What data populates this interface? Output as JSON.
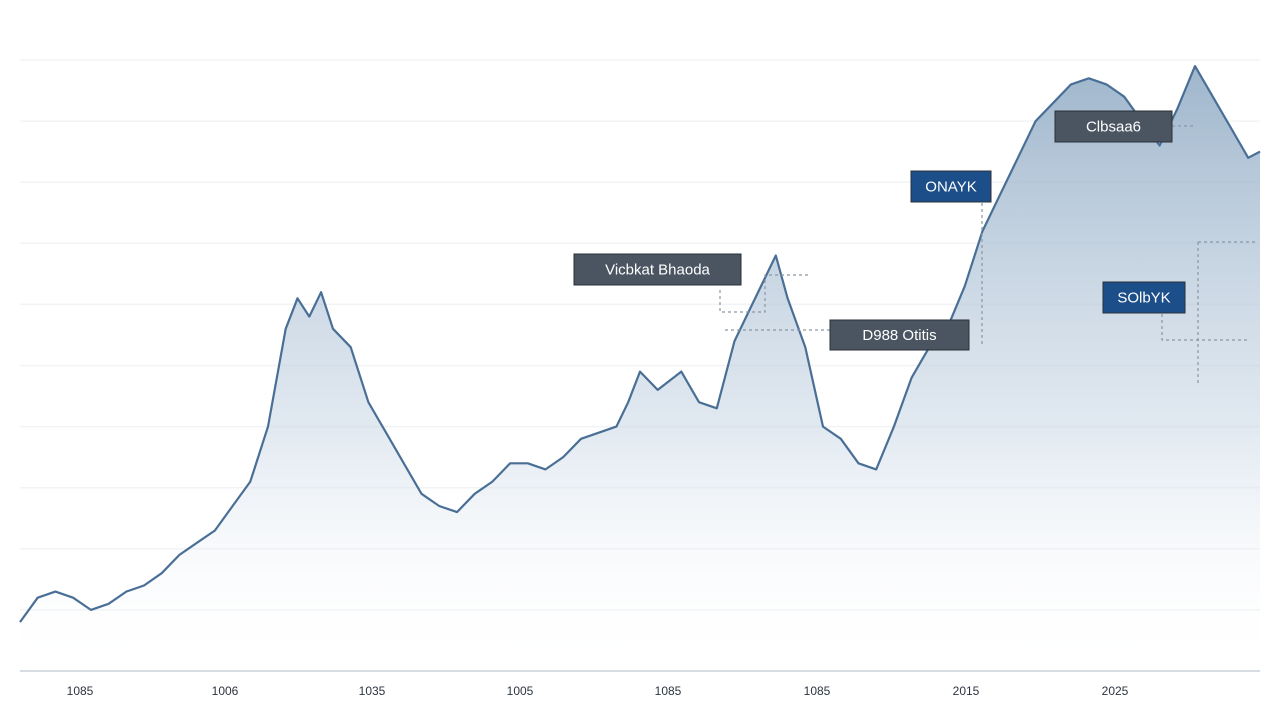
{
  "chart_data": {
    "type": "area",
    "title": "",
    "xlabel": "",
    "ylabel": "",
    "x_tick_labels": [
      "1085",
      "1006",
      "1035",
      "1005",
      "1085",
      "1085",
      "2015",
      "2025"
    ],
    "ylim": [
      0,
      10
    ],
    "grid": true,
    "legend": "none",
    "series": [
      {
        "color": "#4a6f96",
        "fill_color": "#9bb4cc",
        "points": [
          [
            0.0,
            0.8
          ],
          [
            0.3,
            1.2
          ],
          [
            0.6,
            1.3
          ],
          [
            0.9,
            1.2
          ],
          [
            1.2,
            1.0
          ],
          [
            1.5,
            1.1
          ],
          [
            1.8,
            1.3
          ],
          [
            2.1,
            1.4
          ],
          [
            2.4,
            1.6
          ],
          [
            2.7,
            1.9
          ],
          [
            3.0,
            2.1
          ],
          [
            3.3,
            2.3
          ],
          [
            3.6,
            2.7
          ],
          [
            3.9,
            3.1
          ],
          [
            4.2,
            4.0
          ],
          [
            4.5,
            5.6
          ],
          [
            4.7,
            6.1
          ],
          [
            4.9,
            5.8
          ],
          [
            5.1,
            6.2
          ],
          [
            5.3,
            5.6
          ],
          [
            5.6,
            5.3
          ],
          [
            5.9,
            4.4
          ],
          [
            6.2,
            3.9
          ],
          [
            6.5,
            3.4
          ],
          [
            6.8,
            2.9
          ],
          [
            7.1,
            2.7
          ],
          [
            7.4,
            2.6
          ],
          [
            7.7,
            2.9
          ],
          [
            8.0,
            3.1
          ],
          [
            8.3,
            3.4
          ],
          [
            8.6,
            3.4
          ],
          [
            8.9,
            3.3
          ],
          [
            9.2,
            3.5
          ],
          [
            9.5,
            3.8
          ],
          [
            9.8,
            3.9
          ],
          [
            10.1,
            4.0
          ],
          [
            10.3,
            4.4
          ],
          [
            10.5,
            4.9
          ],
          [
            10.8,
            4.6
          ],
          [
            11.2,
            4.9
          ],
          [
            11.5,
            4.4
          ],
          [
            11.8,
            4.3
          ],
          [
            12.1,
            5.4
          ],
          [
            12.4,
            6.0
          ],
          [
            12.6,
            6.4
          ],
          [
            12.8,
            6.8
          ],
          [
            13.0,
            6.1
          ],
          [
            13.3,
            5.3
          ],
          [
            13.6,
            4.0
          ],
          [
            13.9,
            3.8
          ],
          [
            14.2,
            3.4
          ],
          [
            14.5,
            3.3
          ],
          [
            14.8,
            4.0
          ],
          [
            15.1,
            4.8
          ],
          [
            15.4,
            5.3
          ],
          [
            15.7,
            5.6
          ],
          [
            16.0,
            6.3
          ],
          [
            16.3,
            7.2
          ],
          [
            16.6,
            7.8
          ],
          [
            16.9,
            8.4
          ],
          [
            17.2,
            9.0
          ],
          [
            17.5,
            9.3
          ],
          [
            17.8,
            9.6
          ],
          [
            18.1,
            9.7
          ],
          [
            18.4,
            9.6
          ],
          [
            18.7,
            9.4
          ],
          [
            19.0,
            9.0
          ],
          [
            19.3,
            8.6
          ],
          [
            19.6,
            9.2
          ],
          [
            19.9,
            9.9
          ],
          [
            20.2,
            9.4
          ],
          [
            20.5,
            8.9
          ],
          [
            20.8,
            8.4
          ],
          [
            21.0,
            8.5
          ]
        ]
      }
    ],
    "annotations": [
      {
        "text": "Vicbkat Bhaoda",
        "box_color": "#4a5561",
        "text_color": "#ffffff"
      },
      {
        "text": "D988 Otitis",
        "box_color": "#4a5561",
        "text_color": "#ffffff"
      },
      {
        "text": "ONAYK",
        "box_color": "#1c4f8a",
        "text_color": "#ffffff"
      },
      {
        "text": "SOlbYK",
        "box_color": "#1c4f8a",
        "text_color": "#ffffff"
      },
      {
        "text": "Clbsaa6",
        "box_color": "#4a5561",
        "text_color": "#ffffff"
      }
    ]
  }
}
